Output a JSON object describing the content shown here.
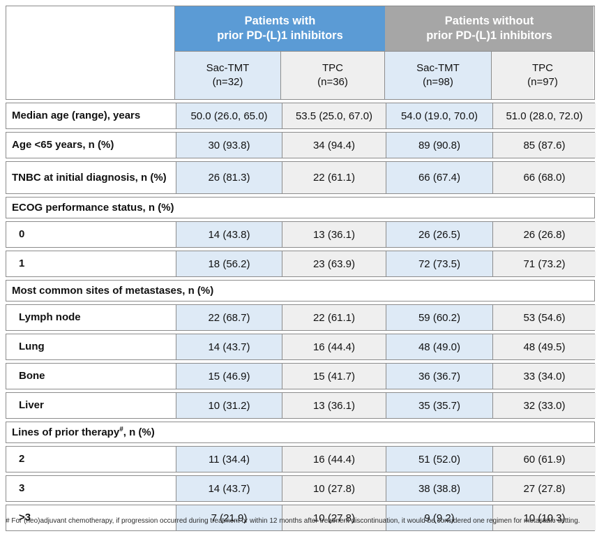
{
  "colors": {
    "blue_header": "#5B9BD5",
    "gray_header": "#A6A6A6",
    "light_blue": "#DEEAF6",
    "light_gray": "#EFEFEF",
    "border": "#8C8C8C"
  },
  "header": {
    "group_with": "Patients with\nprior PD-(L)1 inhibitors",
    "group_without": "Patients without\nprior PD-(L)1 inhibitors",
    "columns": [
      {
        "label": "Sac-TMT\n(n=32)",
        "tint": "blue"
      },
      {
        "label": "TPC\n(n=36)",
        "tint": "gray"
      },
      {
        "label": "Sac-TMT\n(n=98)",
        "tint": "blue"
      },
      {
        "label": "TPC\n(n=97)",
        "tint": "gray"
      }
    ]
  },
  "rows": [
    {
      "type": "data",
      "label": "Median age (range), years",
      "indent": false,
      "values": [
        "50.0 (26.0, 65.0)",
        "53.5 (25.0, 67.0)",
        "54.0 (19.0, 70.0)",
        "51.0 (28.0, 72.0)"
      ]
    },
    {
      "type": "data",
      "label": "Age <65 years, n (%)",
      "indent": false,
      "values": [
        "30 (93.8)",
        "34 (94.4)",
        "89 (90.8)",
        "85 (87.6)"
      ]
    },
    {
      "type": "data",
      "label": "TNBC at initial diagnosis, n (%)",
      "indent": false,
      "tall": true,
      "values": [
        "26 (81.3)",
        "22 (61.1)",
        "66 (67.4)",
        "66 (68.0)"
      ]
    },
    {
      "type": "section",
      "label": "ECOG performance status, n (%)"
    },
    {
      "type": "data",
      "label": "0",
      "indent": true,
      "values": [
        "14 (43.8)",
        "13 (36.1)",
        "26 (26.5)",
        "26 (26.8)"
      ]
    },
    {
      "type": "data",
      "label": "1",
      "indent": true,
      "values": [
        "18 (56.2)",
        "23 (63.9)",
        "72 (73.5)",
        "71 (73.2)"
      ]
    },
    {
      "type": "section",
      "label": "Most common sites of metastases, n (%)"
    },
    {
      "type": "data",
      "label": "Lymph node",
      "indent": true,
      "values": [
        "22 (68.7)",
        "22 (61.1)",
        "59 (60.2)",
        "53 (54.6)"
      ]
    },
    {
      "type": "data",
      "label": "Lung",
      "indent": true,
      "values": [
        "14 (43.7)",
        "16 (44.4)",
        "48 (49.0)",
        "48 (49.5)"
      ]
    },
    {
      "type": "data",
      "label": "Bone",
      "indent": true,
      "values": [
        "15 (46.9)",
        "15 (41.7)",
        "36 (36.7)",
        "33 (34.0)"
      ]
    },
    {
      "type": "data",
      "label": "Liver",
      "indent": true,
      "values": [
        "10 (31.2)",
        "13 (36.1)",
        "35 (35.7)",
        "32 (33.0)"
      ]
    },
    {
      "type": "section",
      "label_parts": {
        "main": "Lines of prior therapy",
        "sup": "#",
        "rest": ", n (%)"
      }
    },
    {
      "type": "data",
      "label": "2",
      "indent": true,
      "values": [
        "11 (34.4)",
        "16 (44.4)",
        "51 (52.0)",
        "60 (61.9)"
      ]
    },
    {
      "type": "data",
      "label": "3",
      "indent": true,
      "values": [
        "14 (43.7)",
        "10 (27.8)",
        "38 (38.8)",
        "27 (27.8)"
      ]
    },
    {
      "type": "data",
      "label": ">3",
      "indent": true,
      "values": [
        "7 (21.9)",
        "10 (27.8)",
        "9 (9.2)",
        "10 (10.3)"
      ]
    }
  ],
  "footnote": "# For (neo)adjuvant chemotherapy, if progression occurred during treatment or within 12 months after treatment discontinuation, it would be considered one regimen for metastatic setting."
}
